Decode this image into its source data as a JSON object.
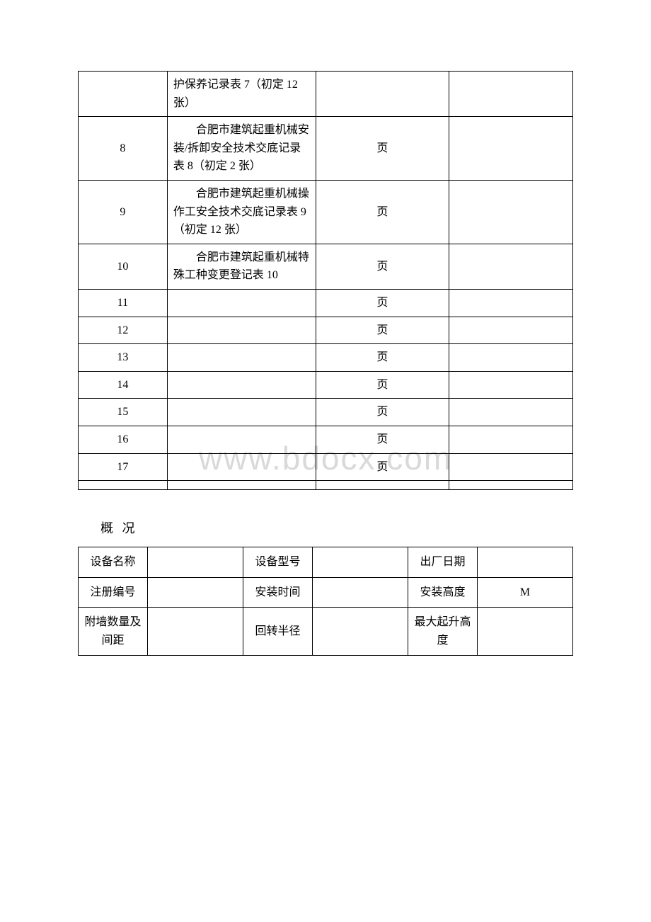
{
  "watermark": "www.bdocx.com",
  "table1": {
    "rows": [
      {
        "num": "",
        "desc": "护保养记录表 7（初定 12 张）",
        "unit": "",
        "note": ""
      },
      {
        "num": "8",
        "desc": "合肥市建筑起重机械安装/拆卸安全技术交底记录表 8（初定 2 张）",
        "unit": "页",
        "note": ""
      },
      {
        "num": "9",
        "desc": "合肥市建筑起重机械操作工安全技术交底记录表 9（初定 12 张）",
        "unit": "页",
        "note": ""
      },
      {
        "num": "10",
        "desc": "合肥市建筑起重机械特殊工种变更登记表 10",
        "unit": "页",
        "note": ""
      },
      {
        "num": "11",
        "desc": "",
        "unit": "页",
        "note": ""
      },
      {
        "num": "12",
        "desc": "",
        "unit": "页",
        "note": ""
      },
      {
        "num": "13",
        "desc": "",
        "unit": "页",
        "note": ""
      },
      {
        "num": "14",
        "desc": "",
        "unit": "页",
        "note": ""
      },
      {
        "num": "15",
        "desc": "",
        "unit": "页",
        "note": ""
      },
      {
        "num": "16",
        "desc": "",
        "unit": "页",
        "note": ""
      },
      {
        "num": "17",
        "desc": "",
        "unit": "页",
        "note": ""
      },
      {
        "num": "",
        "desc": "",
        "unit": "",
        "note": ""
      }
    ]
  },
  "section_title": "概 况",
  "table2": {
    "rows": [
      {
        "l1": "设备名称",
        "v1": "",
        "l2": "设备型号",
        "v2": "",
        "l3": "出厂日期",
        "v3": ""
      },
      {
        "l1": "注册编号",
        "v1": "",
        "l2": "安装时间",
        "v2": "",
        "l3": "安装高度",
        "v3": "M"
      },
      {
        "l1": "附墙数量及间距",
        "v1": "",
        "l2": "回转半径",
        "v2": "",
        "l3": "最大起升高度",
        "v3": ""
      }
    ]
  }
}
